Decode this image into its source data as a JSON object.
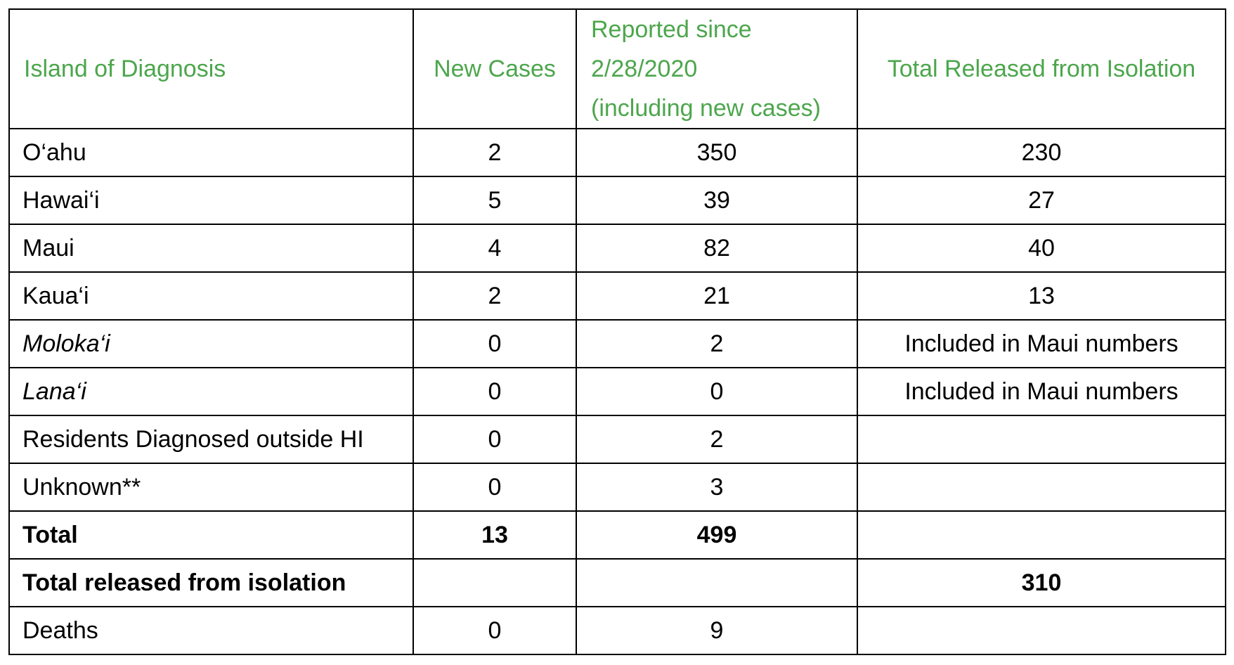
{
  "table": {
    "headers": {
      "island": "Island of Diagnosis",
      "new_cases": "New Cases",
      "reported_line1": "Reported since",
      "reported_line2": "2/28/2020",
      "reported_line3": "(including new cases)",
      "released": "Total Released from Isolation"
    },
    "rows": [
      {
        "name": "O‘ahu",
        "new": "2",
        "reported": "350",
        "released": "230"
      },
      {
        "name": "Hawai‘i",
        "new": "5",
        "reported": "39",
        "released": "27"
      },
      {
        "name": "Maui",
        "new": "4",
        "reported": "82",
        "released": "40"
      },
      {
        "name": "Kaua‘i",
        "new": "2",
        "reported": "21",
        "released": "13"
      },
      {
        "name": "Moloka‘i",
        "new": "0",
        "reported": "2",
        "released": "Included in Maui numbers"
      },
      {
        "name": "Lana‘i",
        "new": "0",
        "reported": "0",
        "released": "Included in Maui numbers"
      },
      {
        "name": "Residents Diagnosed outside HI",
        "new": "0",
        "reported": "2",
        "released": ""
      },
      {
        "name": "Unknown**",
        "new": "0",
        "reported": "3",
        "released": ""
      },
      {
        "name": "Total",
        "new": "13",
        "reported": "499",
        "released": ""
      },
      {
        "name": "Total released from isolation",
        "new": "",
        "reported": "",
        "released": "310"
      },
      {
        "name": "Deaths",
        "new": "0",
        "reported": "9",
        "released": ""
      }
    ]
  },
  "colors": {
    "header_text": "#4ca64c",
    "border": "#000000"
  }
}
